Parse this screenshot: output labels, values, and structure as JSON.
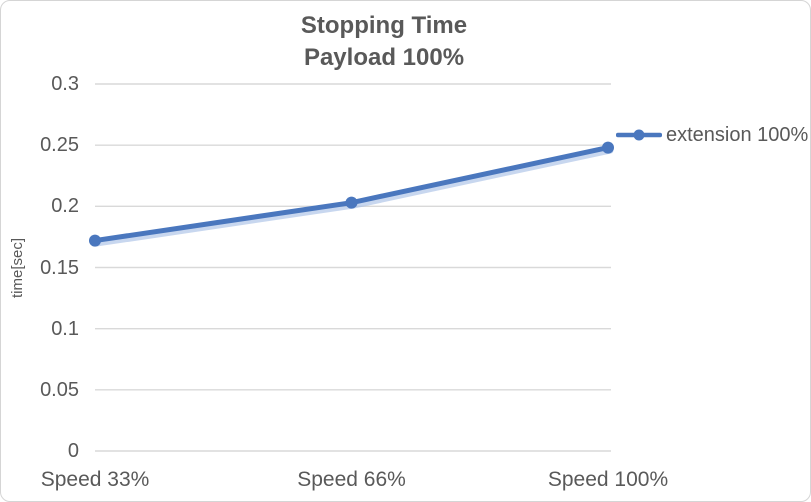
{
  "chart_data": {
    "type": "line",
    "title": "Stopping Time",
    "subtitle": "Payload 100%",
    "categories": [
      "Speed 33%",
      "Speed 66%",
      "Speed 100%"
    ],
    "series": [
      {
        "name": "extension 100%",
        "values": [
          0.172,
          0.203,
          0.248
        ]
      }
    ],
    "xlabel": "",
    "ylabel": "time[sec]",
    "ylim": [
      0,
      0.3
    ],
    "y_tick_values": [
      0,
      0.05,
      0.1,
      0.15,
      0.2,
      0.25,
      0.3
    ],
    "y_tick_labels": [
      "0",
      "0.05",
      "0.1",
      "0.15",
      "0.2",
      "0.25",
      "0.3"
    ],
    "grid": true,
    "legend_position": "right"
  },
  "colors": {
    "line": "#4a77be",
    "marker": "#4a77be",
    "line_shadow": "#a3bde5",
    "gridline": "#d9d9d9",
    "text": "#595959",
    "border": "#d5d5d5"
  }
}
